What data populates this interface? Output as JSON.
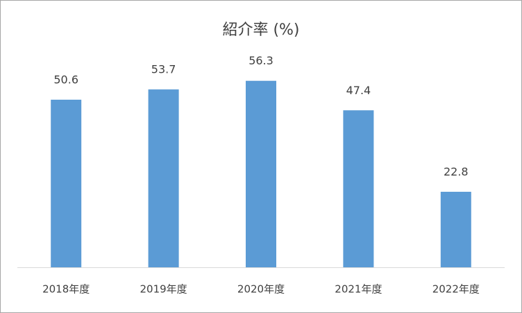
{
  "chart_data": {
    "type": "bar",
    "title": "紹介率 (%)",
    "categories": [
      "2018年度",
      "2019年度",
      "2020年度",
      "2021年度",
      "2022年度"
    ],
    "values": [
      50.6,
      53.7,
      56.3,
      47.4,
      22.8
    ],
    "color": "#5b9bd5",
    "ylim": [
      0,
      60
    ]
  }
}
